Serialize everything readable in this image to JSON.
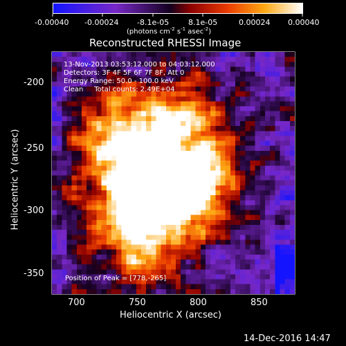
{
  "colorbar": {
    "tick_labels": [
      "-0.00040",
      "-0.00024",
      "-8.1e-05",
      "8.1e-05",
      "0.00024",
      "0.00040"
    ],
    "units": "(photons cm",
    "units_mid": "s",
    "units_end": "asec",
    "units_close": ")",
    "exp_a": "-2",
    "exp_b": "-1",
    "exp_c": "-2",
    "range": [
      -0.0004,
      0.0004
    ]
  },
  "title": "Reconstructed RHESSI Image",
  "info": {
    "line1": "13-Nov-2013 03:53:12.000 to 04:03:12.000",
    "line2": "Detectors: 3F 4F 5F 6F 7F 8F, Att 0",
    "line3": "Energy Range: 50.0 - 100.0 keV",
    "line4": "Clean     Total counts: 2.49E+04"
  },
  "peak_text": "Position of Peak = [778,-265]",
  "axes": {
    "xlabel": "Heliocentric X (arcsec)",
    "ylabel": "Heliocentric Y (arcsec)",
    "x_ticks": [
      "700",
      "750",
      "800",
      "850"
    ],
    "y_ticks": [
      "-200",
      "-250",
      "-300",
      "-350"
    ],
    "xlim": [
      682,
      877
    ],
    "ylim": [
      -370,
      -172
    ]
  },
  "date_stamp": "14-Dec-2016 14:47",
  "colors": {
    "low": "#0000ff",
    "mid": "#000000",
    "high": "#ffffff"
  }
}
